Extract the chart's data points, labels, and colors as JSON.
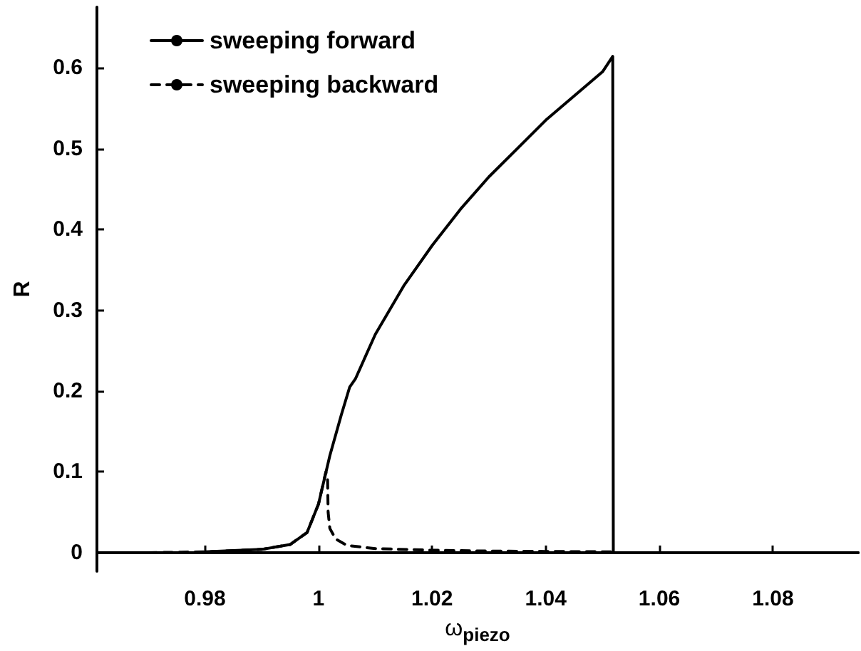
{
  "chart_data": {
    "type": "line",
    "xlabel": "ω$_{piezo}$",
    "ylabel": "R",
    "xlim": [
      0.961,
      1.095
    ],
    "ylim": [
      -0.023,
      0.675
    ],
    "xticks": [
      0.98,
      1,
      1.02,
      1.04,
      1.06,
      1.08
    ],
    "yticks": [
      0,
      0.1,
      0.2,
      0.3,
      0.4,
      0.5,
      0.6
    ],
    "grid": false,
    "legend": "top left",
    "marker": "none",
    "series": [
      {
        "name": "sweeping forward",
        "color": "#000000",
        "line_style": "solid",
        "x": [
          0.98,
          0.99,
          0.995,
          0.998,
          1.0,
          1.002,
          1.004,
          1.0055,
          1.0065,
          1.01,
          1.015,
          1.02,
          1.025,
          1.03,
          1.035,
          1.04,
          1.045,
          1.05,
          1.0518,
          1.0519,
          1.095
        ],
        "values": [
          0.001,
          0.004,
          0.01,
          0.025,
          0.06,
          0.12,
          0.17,
          0.205,
          0.215,
          0.27,
          0.33,
          0.38,
          0.425,
          0.465,
          0.5,
          0.535,
          0.565,
          0.595,
          0.614,
          0,
          0
        ]
      },
      {
        "name": "sweeping backward",
        "color": "#000000",
        "line_style": "dashed",
        "x": [
          0.97,
          0.98,
          0.99,
          0.995,
          0.998,
          1.0,
          1.0013,
          1.0016,
          1.0017,
          1.002,
          1.003,
          1.005,
          1.01,
          1.02,
          1.03,
          1.052
        ],
        "values": [
          0,
          0.001,
          0.004,
          0.01,
          0.025,
          0.06,
          0.1,
          0.09,
          0.05,
          0.03,
          0.017,
          0.009,
          0.005,
          0.003,
          0.002,
          0.001
        ]
      }
    ]
  }
}
